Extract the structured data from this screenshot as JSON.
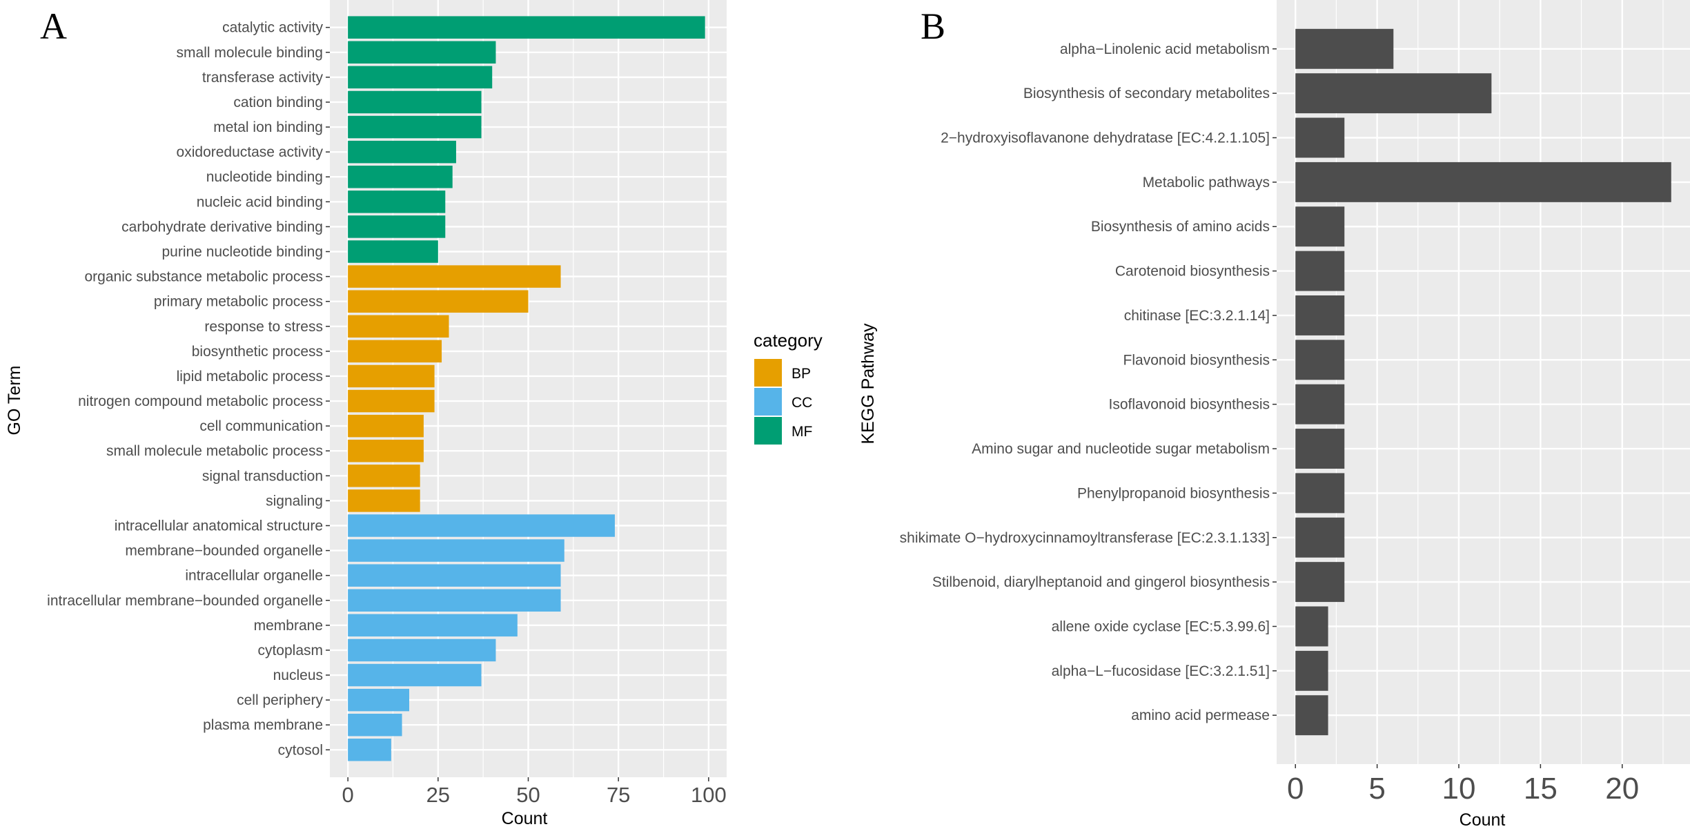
{
  "chart_data": [
    {
      "panel": "A",
      "type": "bar",
      "orientation": "horizontal",
      "xlabel": "Count",
      "ylabel": "GO Term",
      "xlim": [
        -5,
        105
      ],
      "xticks": [
        0,
        25,
        50,
        75,
        100
      ],
      "grid": true,
      "legend": {
        "title": "category",
        "position": "right",
        "entries": [
          {
            "key": "BP",
            "label": "BP",
            "color": "#E69F00"
          },
          {
            "key": "CC",
            "label": "CC",
            "color": "#56B4E9"
          },
          {
            "key": "MF",
            "label": "MF",
            "color": "#009E73"
          }
        ]
      },
      "bars": [
        {
          "label": "catalytic activity",
          "value": 99,
          "category": "MF"
        },
        {
          "label": "small molecule binding",
          "value": 41,
          "category": "MF"
        },
        {
          "label": "transferase activity",
          "value": 40,
          "category": "MF"
        },
        {
          "label": "cation binding",
          "value": 37,
          "category": "MF"
        },
        {
          "label": "metal ion binding",
          "value": 37,
          "category": "MF"
        },
        {
          "label": "oxidoreductase activity",
          "value": 30,
          "category": "MF"
        },
        {
          "label": "nucleotide binding",
          "value": 29,
          "category": "MF"
        },
        {
          "label": "nucleic acid binding",
          "value": 27,
          "category": "MF"
        },
        {
          "label": "carbohydrate derivative binding",
          "value": 27,
          "category": "MF"
        },
        {
          "label": "purine nucleotide binding",
          "value": 25,
          "category": "MF"
        },
        {
          "label": "organic substance metabolic process",
          "value": 59,
          "category": "BP"
        },
        {
          "label": "primary metabolic process",
          "value": 50,
          "category": "BP"
        },
        {
          "label": "response to stress",
          "value": 28,
          "category": "BP"
        },
        {
          "label": "biosynthetic process",
          "value": 26,
          "category": "BP"
        },
        {
          "label": "lipid metabolic process",
          "value": 24,
          "category": "BP"
        },
        {
          "label": "nitrogen compound metabolic process",
          "value": 24,
          "category": "BP"
        },
        {
          "label": "cell communication",
          "value": 21,
          "category": "BP"
        },
        {
          "label": "small molecule metabolic process",
          "value": 21,
          "category": "BP"
        },
        {
          "label": "signal transduction",
          "value": 20,
          "category": "BP"
        },
        {
          "label": "signaling",
          "value": 20,
          "category": "BP"
        },
        {
          "label": "intracellular anatomical structure",
          "value": 74,
          "category": "CC"
        },
        {
          "label": "membrane−bounded organelle",
          "value": 60,
          "category": "CC"
        },
        {
          "label": "intracellular organelle",
          "value": 59,
          "category": "CC"
        },
        {
          "label": "intracellular membrane−bounded organelle",
          "value": 59,
          "category": "CC"
        },
        {
          "label": "membrane",
          "value": 47,
          "category": "CC"
        },
        {
          "label": "cytoplasm",
          "value": 41,
          "category": "CC"
        },
        {
          "label": "nucleus",
          "value": 37,
          "category": "CC"
        },
        {
          "label": "cell periphery",
          "value": 17,
          "category": "CC"
        },
        {
          "label": "plasma membrane",
          "value": 15,
          "category": "CC"
        },
        {
          "label": "cytosol",
          "value": 12,
          "category": "CC"
        }
      ]
    },
    {
      "panel": "B",
      "type": "bar",
      "orientation": "horizontal",
      "xlabel": "Count",
      "ylabel": "KEGG Pathway",
      "xlim": [
        -1.15,
        24.15
      ],
      "xticks": [
        0,
        5,
        10,
        15,
        20
      ],
      "grid": true,
      "bar_color": "#4D4D4D",
      "bars": [
        {
          "label": "alpha−Linolenic acid metabolism",
          "value": 6
        },
        {
          "label": "Biosynthesis of secondary metabolites",
          "value": 12
        },
        {
          "label": "2−hydroxyisoflavanone dehydratase [EC:4.2.1.105]",
          "value": 3
        },
        {
          "label": "Metabolic pathways",
          "value": 23
        },
        {
          "label": "Biosynthesis of amino acids",
          "value": 3
        },
        {
          "label": "Carotenoid biosynthesis",
          "value": 3
        },
        {
          "label": "chitinase [EC:3.2.1.14]",
          "value": 3
        },
        {
          "label": "Flavonoid biosynthesis",
          "value": 3
        },
        {
          "label": "Isoflavonoid biosynthesis",
          "value": 3
        },
        {
          "label": "Amino sugar and nucleotide sugar metabolism",
          "value": 3
        },
        {
          "label": "Phenylpropanoid biosynthesis",
          "value": 3
        },
        {
          "label": "shikimate O−hydroxycinnamoyltransferase [EC:2.3.1.133]",
          "value": 3
        },
        {
          "label": "Stilbenoid, diarylheptanoid and gingerol biosynthesis",
          "value": 3
        },
        {
          "label": "allene oxide cyclase [EC:5.3.99.6]",
          "value": 2
        },
        {
          "label": "alpha−L−fucosidase [EC:3.2.1.51]",
          "value": 2
        },
        {
          "label": "amino acid permease",
          "value": 2
        }
      ]
    }
  ]
}
